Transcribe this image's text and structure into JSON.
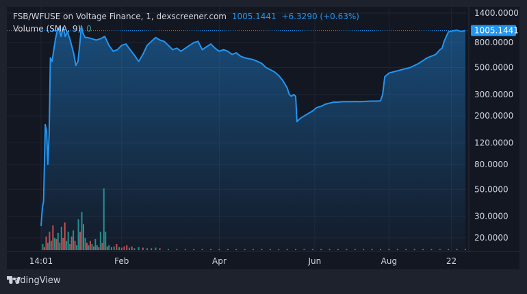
{
  "header": {
    "title": "FSB/WFUSE on Voltage Finance, 1, dexscreener.com",
    "price": "1005.1441",
    "change": "+6.3290 (+0.63%)"
  },
  "volume_legend": {
    "label": "Volume (SMA, 9)",
    "value": "0"
  },
  "price_badge": "1005.1441",
  "footer": {
    "brand": "TradingView"
  },
  "colors": {
    "background": "#131722",
    "line": "#2196f3",
    "vol_up": "#26a69a",
    "vol_down": "#ef5350",
    "text": "#d1d4dc"
  },
  "chart_data": {
    "type": "area",
    "scale": "log",
    "title": "FSB/WFUSE on Voltage Finance, 1, dexscreener.com",
    "ylim": [
      15,
      1400
    ],
    "y_ticks": [
      {
        "value": 1400,
        "label": "1400.0000"
      },
      {
        "value": 800,
        "label": "800.0000"
      },
      {
        "value": 500,
        "label": "500.0000"
      },
      {
        "value": 300,
        "label": "300.0000"
      },
      {
        "value": 200,
        "label": "200.0000"
      },
      {
        "value": 120,
        "label": "120.0000"
      },
      {
        "value": 80,
        "label": "80.0000"
      },
      {
        "value": 50,
        "label": "50.0000"
      },
      {
        "value": 30,
        "label": "30.0000"
      },
      {
        "value": 20,
        "label": "20.0000"
      }
    ],
    "x_ticks": [
      {
        "t": 0.0,
        "label": "14:01"
      },
      {
        "t": 0.19,
        "label": "Feb"
      },
      {
        "t": 0.42,
        "label": "Apr"
      },
      {
        "t": 0.645,
        "label": "Jun"
      },
      {
        "t": 0.82,
        "label": "Aug"
      },
      {
        "t": 0.967,
        "label": "22"
      }
    ],
    "series": [
      {
        "name": "FSB/WFUSE",
        "points": [
          [
            0.0,
            25
          ],
          [
            0.003,
            35
          ],
          [
            0.006,
            40
          ],
          [
            0.01,
            170
          ],
          [
            0.013,
            150
          ],
          [
            0.016,
            80
          ],
          [
            0.019,
            140
          ],
          [
            0.022,
            600
          ],
          [
            0.026,
            560
          ],
          [
            0.03,
            700
          ],
          [
            0.034,
            860
          ],
          [
            0.038,
            1000
          ],
          [
            0.042,
            1060
          ],
          [
            0.047,
            900
          ],
          [
            0.052,
            1070
          ],
          [
            0.057,
            900
          ],
          [
            0.062,
            980
          ],
          [
            0.067,
            880
          ],
          [
            0.072,
            760
          ],
          [
            0.077,
            650
          ],
          [
            0.082,
            520
          ],
          [
            0.087,
            560
          ],
          [
            0.092,
            820
          ],
          [
            0.095,
            1100
          ],
          [
            0.099,
            950
          ],
          [
            0.104,
            880
          ],
          [
            0.11,
            880
          ],
          [
            0.12,
            860
          ],
          [
            0.13,
            840
          ],
          [
            0.14,
            860
          ],
          [
            0.15,
            900
          ],
          [
            0.16,
            760
          ],
          [
            0.17,
            680
          ],
          [
            0.18,
            700
          ],
          [
            0.19,
            760
          ],
          [
            0.2,
            780
          ],
          [
            0.21,
            700
          ],
          [
            0.22,
            630
          ],
          [
            0.23,
            560
          ],
          [
            0.24,
            640
          ],
          [
            0.25,
            760
          ],
          [
            0.26,
            820
          ],
          [
            0.27,
            880
          ],
          [
            0.28,
            840
          ],
          [
            0.29,
            820
          ],
          [
            0.3,
            760
          ],
          [
            0.31,
            700
          ],
          [
            0.32,
            720
          ],
          [
            0.33,
            680
          ],
          [
            0.34,
            720
          ],
          [
            0.35,
            760
          ],
          [
            0.36,
            800
          ],
          [
            0.37,
            820
          ],
          [
            0.38,
            700
          ],
          [
            0.39,
            740
          ],
          [
            0.4,
            780
          ],
          [
            0.41,
            720
          ],
          [
            0.42,
            680
          ],
          [
            0.43,
            700
          ],
          [
            0.44,
            680
          ],
          [
            0.45,
            640
          ],
          [
            0.46,
            660
          ],
          [
            0.47,
            620
          ],
          [
            0.48,
            600
          ],
          [
            0.49,
            590
          ],
          [
            0.5,
            580
          ],
          [
            0.51,
            560
          ],
          [
            0.52,
            540
          ],
          [
            0.53,
            500
          ],
          [
            0.54,
            480
          ],
          [
            0.55,
            460
          ],
          [
            0.56,
            430
          ],
          [
            0.57,
            390
          ],
          [
            0.58,
            340
          ],
          [
            0.585,
            300
          ],
          [
            0.59,
            290
          ],
          [
            0.595,
            300
          ],
          [
            0.6,
            290
          ],
          [
            0.603,
            180
          ],
          [
            0.61,
            190
          ],
          [
            0.62,
            200
          ],
          [
            0.63,
            210
          ],
          [
            0.64,
            220
          ],
          [
            0.65,
            235
          ],
          [
            0.66,
            240
          ],
          [
            0.67,
            250
          ],
          [
            0.68,
            255
          ],
          [
            0.69,
            260
          ],
          [
            0.7,
            260
          ],
          [
            0.71,
            262
          ],
          [
            0.72,
            262
          ],
          [
            0.73,
            262
          ],
          [
            0.74,
            263
          ],
          [
            0.75,
            262
          ],
          [
            0.76,
            263
          ],
          [
            0.77,
            264
          ],
          [
            0.78,
            265
          ],
          [
            0.79,
            265
          ],
          [
            0.8,
            266
          ],
          [
            0.805,
            300
          ],
          [
            0.81,
            420
          ],
          [
            0.82,
            450
          ],
          [
            0.83,
            460
          ],
          [
            0.84,
            470
          ],
          [
            0.85,
            480
          ],
          [
            0.86,
            490
          ],
          [
            0.87,
            500
          ],
          [
            0.88,
            520
          ],
          [
            0.89,
            540
          ],
          [
            0.9,
            570
          ],
          [
            0.91,
            600
          ],
          [
            0.92,
            620
          ],
          [
            0.93,
            640
          ],
          [
            0.94,
            700
          ],
          [
            0.945,
            720
          ],
          [
            0.95,
            820
          ],
          [
            0.955,
            900
          ],
          [
            0.96,
            980
          ],
          [
            0.97,
            1000
          ],
          [
            0.98,
            1010
          ],
          [
            0.99,
            990
          ],
          [
            1.0,
            1005
          ]
        ]
      }
    ],
    "volume": [
      {
        "t": 0.004,
        "v": 0.1,
        "dir": "up"
      },
      {
        "t": 0.008,
        "v": 0.05,
        "dir": "down"
      },
      {
        "t": 0.012,
        "v": 0.22,
        "dir": "down"
      },
      {
        "t": 0.016,
        "v": 0.12,
        "dir": "up"
      },
      {
        "t": 0.02,
        "v": 0.3,
        "dir": "down"
      },
      {
        "t": 0.024,
        "v": 0.15,
        "dir": "up"
      },
      {
        "t": 0.028,
        "v": 0.4,
        "dir": "down"
      },
      {
        "t": 0.032,
        "v": 0.2,
        "dir": "up"
      },
      {
        "t": 0.036,
        "v": 0.18,
        "dir": "down"
      },
      {
        "t": 0.04,
        "v": 0.28,
        "dir": "up"
      },
      {
        "t": 0.044,
        "v": 0.12,
        "dir": "down"
      },
      {
        "t": 0.048,
        "v": 0.38,
        "dir": "up"
      },
      {
        "t": 0.052,
        "v": 0.2,
        "dir": "down"
      },
      {
        "t": 0.056,
        "v": 0.45,
        "dir": "down"
      },
      {
        "t": 0.06,
        "v": 0.15,
        "dir": "up"
      },
      {
        "t": 0.064,
        "v": 0.3,
        "dir": "up"
      },
      {
        "t": 0.068,
        "v": 0.1,
        "dir": "down"
      },
      {
        "t": 0.072,
        "v": 0.22,
        "dir": "down"
      },
      {
        "t": 0.076,
        "v": 0.32,
        "dir": "up"
      },
      {
        "t": 0.08,
        "v": 0.15,
        "dir": "down"
      },
      {
        "t": 0.084,
        "v": 0.08,
        "dir": "up"
      },
      {
        "t": 0.088,
        "v": 0.5,
        "dir": "up"
      },
      {
        "t": 0.092,
        "v": 0.3,
        "dir": "down"
      },
      {
        "t": 0.096,
        "v": 0.62,
        "dir": "up"
      },
      {
        "t": 0.1,
        "v": 0.42,
        "dir": "down"
      },
      {
        "t": 0.104,
        "v": 0.2,
        "dir": "up"
      },
      {
        "t": 0.108,
        "v": 0.12,
        "dir": "down"
      },
      {
        "t": 0.112,
        "v": 0.08,
        "dir": "up"
      },
      {
        "t": 0.116,
        "v": 0.15,
        "dir": "down"
      },
      {
        "t": 0.12,
        "v": 0.1,
        "dir": "up"
      },
      {
        "t": 0.124,
        "v": 0.06,
        "dir": "down"
      },
      {
        "t": 0.128,
        "v": 0.18,
        "dir": "up"
      },
      {
        "t": 0.132,
        "v": 0.08,
        "dir": "up"
      },
      {
        "t": 0.136,
        "v": 0.05,
        "dir": "down"
      },
      {
        "t": 0.14,
        "v": 0.3,
        "dir": "up"
      },
      {
        "t": 0.144,
        "v": 0.12,
        "dir": "down"
      },
      {
        "t": 0.148,
        "v": 1.0,
        "dir": "up"
      },
      {
        "t": 0.152,
        "v": 0.3,
        "dir": "up"
      },
      {
        "t": 0.156,
        "v": 0.06,
        "dir": "down"
      },
      {
        "t": 0.16,
        "v": 0.08,
        "dir": "up"
      },
      {
        "t": 0.166,
        "v": 0.05,
        "dir": "down"
      },
      {
        "t": 0.172,
        "v": 0.06,
        "dir": "up"
      },
      {
        "t": 0.178,
        "v": 0.1,
        "dir": "down"
      },
      {
        "t": 0.184,
        "v": 0.05,
        "dir": "up"
      },
      {
        "t": 0.19,
        "v": 0.04,
        "dir": "down"
      },
      {
        "t": 0.196,
        "v": 0.06,
        "dir": "down"
      },
      {
        "t": 0.202,
        "v": 0.08,
        "dir": "down"
      },
      {
        "t": 0.208,
        "v": 0.04,
        "dir": "up"
      },
      {
        "t": 0.214,
        "v": 0.06,
        "dir": "down"
      },
      {
        "t": 0.22,
        "v": 0.03,
        "dir": "up"
      },
      {
        "t": 0.23,
        "v": 0.05,
        "dir": "up"
      },
      {
        "t": 0.24,
        "v": 0.04,
        "dir": "down"
      },
      {
        "t": 0.25,
        "v": 0.03,
        "dir": "up"
      },
      {
        "t": 0.26,
        "v": 0.03,
        "dir": "down"
      },
      {
        "t": 0.27,
        "v": 0.04,
        "dir": "up"
      },
      {
        "t": 0.28,
        "v": 0.03,
        "dir": "down"
      },
      {
        "t": 0.3,
        "v": 0.02,
        "dir": "up"
      },
      {
        "t": 0.32,
        "v": 0.02,
        "dir": "down"
      },
      {
        "t": 0.34,
        "v": 0.02,
        "dir": "up"
      },
      {
        "t": 0.36,
        "v": 0.02,
        "dir": "down"
      },
      {
        "t": 0.38,
        "v": 0.02,
        "dir": "up"
      },
      {
        "t": 0.4,
        "v": 0.02,
        "dir": "down"
      },
      {
        "t": 0.42,
        "v": 0.02,
        "dir": "up"
      },
      {
        "t": 0.44,
        "v": 0.02,
        "dir": "down"
      },
      {
        "t": 0.46,
        "v": 0.02,
        "dir": "up"
      },
      {
        "t": 0.48,
        "v": 0.02,
        "dir": "down"
      },
      {
        "t": 0.5,
        "v": 0.02,
        "dir": "up"
      },
      {
        "t": 0.52,
        "v": 0.02,
        "dir": "down"
      },
      {
        "t": 0.54,
        "v": 0.02,
        "dir": "down"
      },
      {
        "t": 0.56,
        "v": 0.02,
        "dir": "up"
      },
      {
        "t": 0.58,
        "v": 0.02,
        "dir": "down"
      },
      {
        "t": 0.6,
        "v": 0.02,
        "dir": "up"
      },
      {
        "t": 0.62,
        "v": 0.02,
        "dir": "up"
      },
      {
        "t": 0.64,
        "v": 0.02,
        "dir": "down"
      },
      {
        "t": 0.66,
        "v": 0.02,
        "dir": "up"
      },
      {
        "t": 0.68,
        "v": 0.02,
        "dir": "down"
      },
      {
        "t": 0.7,
        "v": 0.02,
        "dir": "up"
      },
      {
        "t": 0.72,
        "v": 0.02,
        "dir": "down"
      },
      {
        "t": 0.74,
        "v": 0.02,
        "dir": "up"
      },
      {
        "t": 0.76,
        "v": 0.02,
        "dir": "down"
      },
      {
        "t": 0.78,
        "v": 0.02,
        "dir": "up"
      },
      {
        "t": 0.8,
        "v": 0.02,
        "dir": "down"
      },
      {
        "t": 0.82,
        "v": 0.02,
        "dir": "up"
      },
      {
        "t": 0.84,
        "v": 0.02,
        "dir": "up"
      },
      {
        "t": 0.86,
        "v": 0.02,
        "dir": "down"
      },
      {
        "t": 0.88,
        "v": 0.02,
        "dir": "up"
      },
      {
        "t": 0.9,
        "v": 0.02,
        "dir": "up"
      },
      {
        "t": 0.92,
        "v": 0.02,
        "dir": "down"
      },
      {
        "t": 0.94,
        "v": 0.02,
        "dir": "up"
      },
      {
        "t": 0.96,
        "v": 0.02,
        "dir": "up"
      },
      {
        "t": 0.98,
        "v": 0.02,
        "dir": "down"
      },
      {
        "t": 1.0,
        "v": 0.02,
        "dir": "up"
      }
    ]
  }
}
